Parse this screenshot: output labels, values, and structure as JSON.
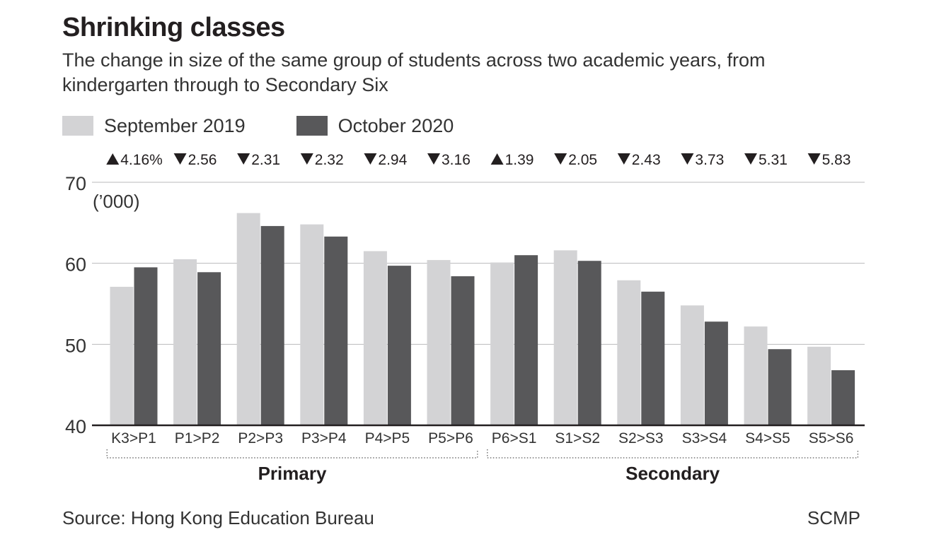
{
  "title": "Shrinking classes",
  "subtitle": "The change in size of the same group of students across two academic years, from kindergarten through to Secondary Six",
  "legend": [
    {
      "label": "September 2019",
      "color": "#d3d3d5"
    },
    {
      "label": "October 2020",
      "color": "#58585a"
    }
  ],
  "source": "Source: Hong Kong Education Bureau",
  "credit": "SCMP",
  "chart_data": {
    "type": "bar",
    "title": "Shrinking classes",
    "ylabel": "('000)",
    "unit_label": "(’000)",
    "ylim": [
      40,
      70
    ],
    "yticks": [
      40,
      50,
      60,
      70
    ],
    "grid": true,
    "legend_position": "top-left",
    "categories": [
      "K3>P1",
      "P1>P2",
      "P2>P3",
      "P3>P4",
      "P4>P5",
      "P5>P6",
      "P6>S1",
      "S1>S2",
      "S2>S3",
      "S3>S4",
      "S4>S5",
      "S5>S6"
    ],
    "series": [
      {
        "name": "September 2019",
        "color": "#d3d3d5",
        "values": [
          57.1,
          60.5,
          66.2,
          64.8,
          61.5,
          60.4,
          60.1,
          61.6,
          57.9,
          54.8,
          52.2,
          49.7
        ]
      },
      {
        "name": "October 2020",
        "color": "#58585a",
        "values": [
          59.5,
          58.9,
          64.6,
          63.3,
          59.7,
          58.4,
          61.0,
          60.3,
          56.5,
          52.8,
          49.4,
          46.8
        ]
      }
    ],
    "changes": [
      {
        "direction": "up",
        "text": "4.16%"
      },
      {
        "direction": "down",
        "text": "2.56"
      },
      {
        "direction": "down",
        "text": "2.31"
      },
      {
        "direction": "down",
        "text": "2.32"
      },
      {
        "direction": "down",
        "text": "2.94"
      },
      {
        "direction": "down",
        "text": "3.16"
      },
      {
        "direction": "up",
        "text": "1.39"
      },
      {
        "direction": "down",
        "text": "2.05"
      },
      {
        "direction": "down",
        "text": "2.43"
      },
      {
        "direction": "down",
        "text": "3.73"
      },
      {
        "direction": "down",
        "text": "5.31"
      },
      {
        "direction": "down",
        "text": "5.83"
      }
    ],
    "groups": [
      {
        "label": "Primary",
        "start": 0,
        "end": 5
      },
      {
        "label": "Secondary",
        "start": 6,
        "end": 11
      }
    ]
  }
}
